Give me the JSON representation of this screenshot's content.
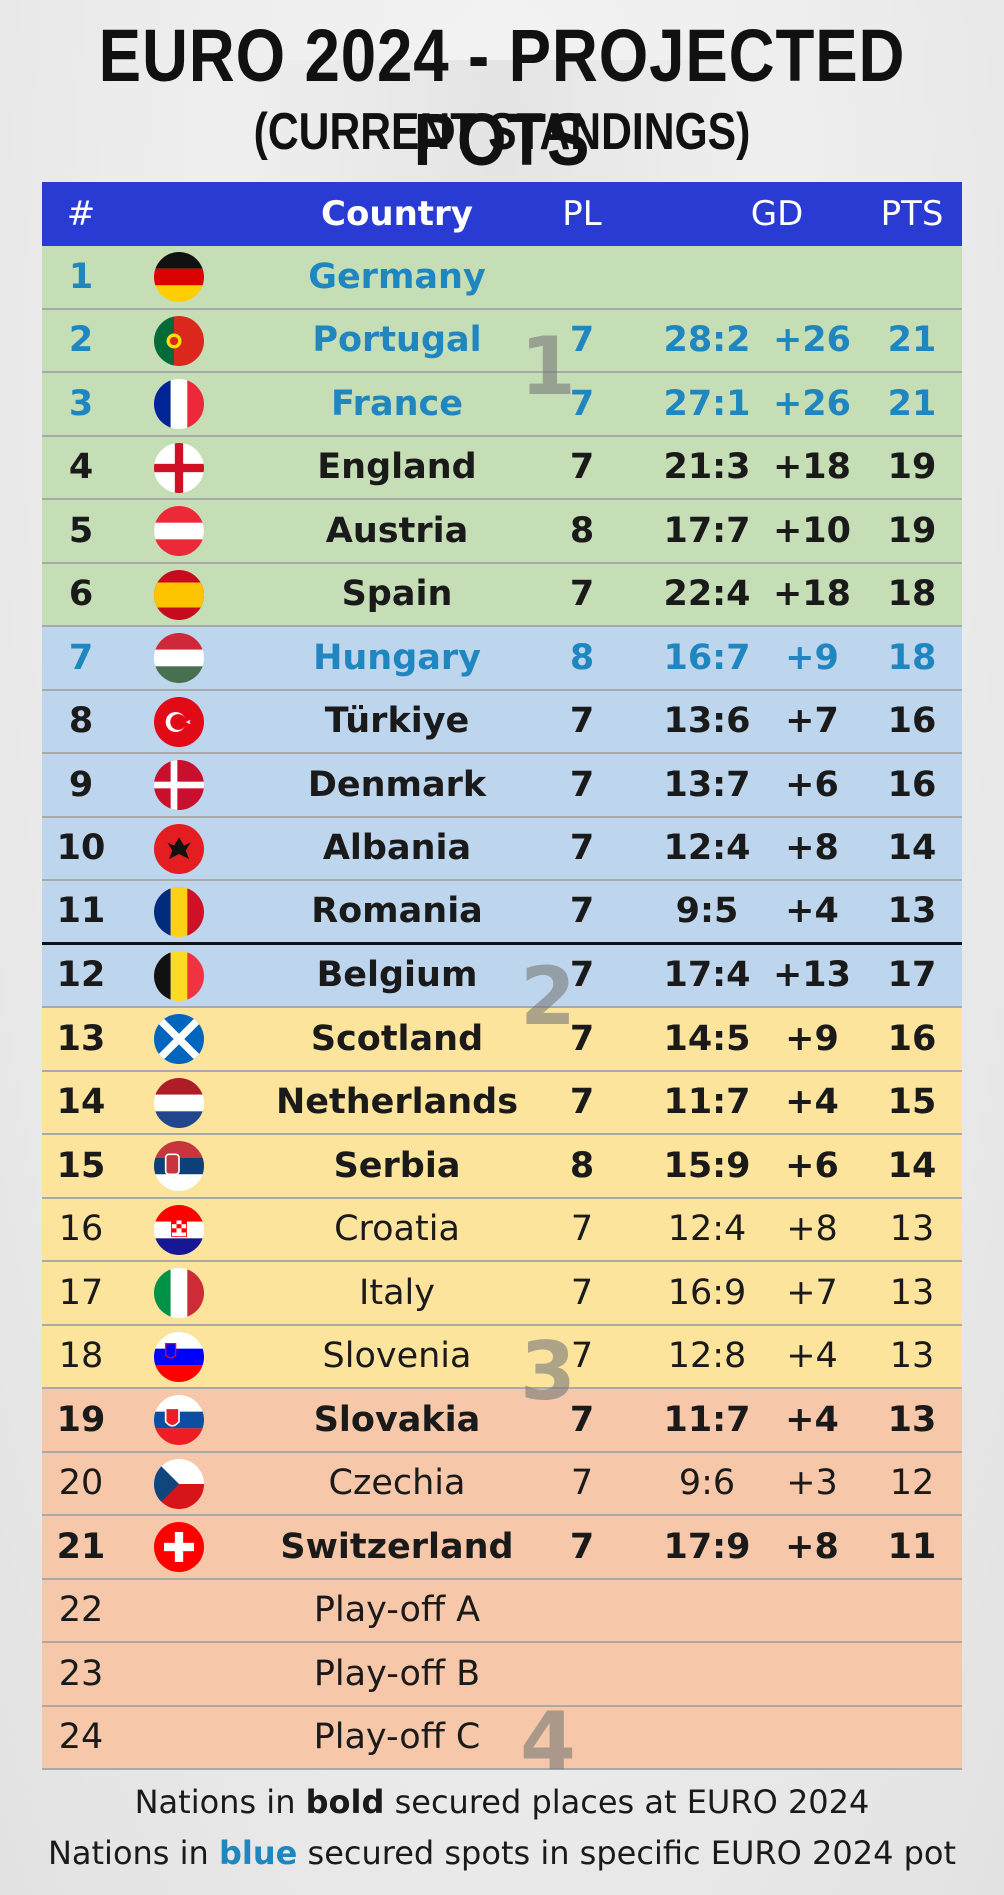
{
  "title": "EURO 2024 - PROJECTED POTS",
  "subtitle": "(CURRENT STANDINGS)",
  "header": {
    "num": "#",
    "country": "Country",
    "pl": "PL",
    "gd": "GD",
    "pts": "PTS"
  },
  "pot_labels": [
    "1",
    "2",
    "3",
    "4"
  ],
  "rows": [
    {
      "num": "1",
      "country": "Germany",
      "pl": "",
      "gd": "",
      "diff": "",
      "pts": "",
      "flag": "germany",
      "pot": 1,
      "style": "blue"
    },
    {
      "num": "2",
      "country": "Portugal",
      "pl": "7",
      "gd": "28:2",
      "diff": "+26",
      "pts": "21",
      "flag": "portugal",
      "pot": 1,
      "style": "blue"
    },
    {
      "num": "3",
      "country": "France",
      "pl": "7",
      "gd": "27:1",
      "diff": "+26",
      "pts": "21",
      "flag": "france",
      "pot": 1,
      "style": "blue"
    },
    {
      "num": "4",
      "country": "England",
      "pl": "7",
      "gd": "21:3",
      "diff": "+18",
      "pts": "19",
      "flag": "england",
      "pot": 1,
      "style": "bold"
    },
    {
      "num": "5",
      "country": "Austria",
      "pl": "8",
      "gd": "17:7",
      "diff": "+10",
      "pts": "19",
      "flag": "austria",
      "pot": 1,
      "style": "bold"
    },
    {
      "num": "6",
      "country": "Spain",
      "pl": "7",
      "gd": "22:4",
      "diff": "+18",
      "pts": "18",
      "flag": "spain",
      "pot": 1,
      "style": "bold"
    },
    {
      "num": "7",
      "country": "Hungary",
      "pl": "8",
      "gd": "16:7",
      "diff": "+9",
      "pts": "18",
      "flag": "hungary",
      "pot": 2,
      "style": "blue"
    },
    {
      "num": "8",
      "country": "Türkiye",
      "pl": "7",
      "gd": "13:6",
      "diff": "+7",
      "pts": "16",
      "flag": "turkiye",
      "pot": 2,
      "style": "bold"
    },
    {
      "num": "9",
      "country": "Denmark",
      "pl": "7",
      "gd": "13:7",
      "diff": "+6",
      "pts": "16",
      "flag": "denmark",
      "pot": 2,
      "style": "bold"
    },
    {
      "num": "10",
      "country": "Albania",
      "pl": "7",
      "gd": "12:4",
      "diff": "+8",
      "pts": "14",
      "flag": "albania",
      "pot": 2,
      "style": "bold"
    },
    {
      "num": "11",
      "country": "Romania",
      "pl": "7",
      "gd": "9:5",
      "diff": "+4",
      "pts": "13",
      "flag": "romania",
      "pot": 2,
      "style": "bold"
    },
    {
      "num": "12",
      "country": "Belgium",
      "pl": "7",
      "gd": "17:4",
      "diff": "+13",
      "pts": "17",
      "flag": "belgium",
      "pot": 2,
      "style": "bold"
    },
    {
      "num": "13",
      "country": "Scotland",
      "pl": "7",
      "gd": "14:5",
      "diff": "+9",
      "pts": "16",
      "flag": "scotland",
      "pot": 3,
      "style": "bold"
    },
    {
      "num": "14",
      "country": "Netherlands",
      "pl": "7",
      "gd": "11:7",
      "diff": "+4",
      "pts": "15",
      "flag": "netherlands",
      "pot": 3,
      "style": "bold"
    },
    {
      "num": "15",
      "country": "Serbia",
      "pl": "8",
      "gd": "15:9",
      "diff": "+6",
      "pts": "14",
      "flag": "serbia",
      "pot": 3,
      "style": "bold"
    },
    {
      "num": "16",
      "country": "Croatia",
      "pl": "7",
      "gd": "12:4",
      "diff": "+8",
      "pts": "13",
      "flag": "croatia",
      "pot": 3,
      "style": "normal"
    },
    {
      "num": "17",
      "country": "Italy",
      "pl": "7",
      "gd": "16:9",
      "diff": "+7",
      "pts": "13",
      "flag": "italy",
      "pot": 3,
      "style": "normal"
    },
    {
      "num": "18",
      "country": "Slovenia",
      "pl": "7",
      "gd": "12:8",
      "diff": "+4",
      "pts": "13",
      "flag": "slovenia",
      "pot": 3,
      "style": "normal"
    },
    {
      "num": "19",
      "country": "Slovakia",
      "pl": "7",
      "gd": "11:7",
      "diff": "+4",
      "pts": "13",
      "flag": "slovakia",
      "pot": 4,
      "style": "bold"
    },
    {
      "num": "20",
      "country": "Czechia",
      "pl": "7",
      "gd": "9:6",
      "diff": "+3",
      "pts": "12",
      "flag": "czechia",
      "pot": 4,
      "style": "normal"
    },
    {
      "num": "21",
      "country": "Switzerland",
      "pl": "7",
      "gd": "17:9",
      "diff": "+8",
      "pts": "11",
      "flag": "switzerland",
      "pot": 4,
      "style": "bold"
    },
    {
      "num": "22",
      "country": "Play-off A",
      "pl": "",
      "gd": "",
      "diff": "",
      "pts": "",
      "flag": "",
      "pot": 4,
      "style": "normal"
    },
    {
      "num": "23",
      "country": "Play-off B",
      "pl": "",
      "gd": "",
      "diff": "",
      "pts": "",
      "flag": "",
      "pot": 4,
      "style": "normal"
    },
    {
      "num": "24",
      "country": "Play-off C",
      "pl": "",
      "gd": "",
      "diff": "",
      "pts": "",
      "flag": "",
      "pot": 4,
      "style": "normal"
    }
  ],
  "footer": {
    "line1_pre": "Nations in ",
    "line1_bold": "bold",
    "line1_post": " secured places at EURO 2024",
    "line2_pre": "Nations in ",
    "line2_blue": "blue",
    "line2_post": " secured spots in specific EURO 2024 pot"
  },
  "colors": {
    "header": "#2a3bd4",
    "pot1": "#c6deb6",
    "pot2": "#bdd6ee",
    "pot3": "#fde49c",
    "pot4": "#f6c7a8",
    "blue_text": "#1f86c0"
  }
}
